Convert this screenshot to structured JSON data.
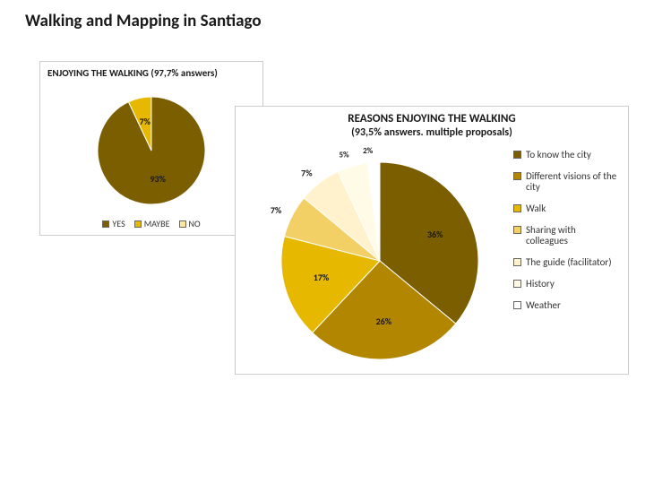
{
  "page": {
    "title": "Walking and Mapping in Santiago"
  },
  "chart1": {
    "type": "pie",
    "title": "ENJOYING THE WALKING (97,7% answers)",
    "background": "#ffffff",
    "border_color": "#cccccc",
    "radius": 60,
    "slices": [
      {
        "label": "YES",
        "value": 93,
        "text": "93%",
        "color": "#7a5e00"
      },
      {
        "label": "MAYBE",
        "value": 7,
        "text": "7%",
        "color": "#e6b800"
      },
      {
        "label": "NO",
        "value": 0,
        "text": "",
        "color": "#ffe699"
      }
    ],
    "legend": [
      {
        "label": "YES",
        "color": "#7a5e00"
      },
      {
        "label": "MAYBE",
        "color": "#e6b800"
      },
      {
        "label": "NO",
        "color": "#ffe699"
      }
    ],
    "label_fontsize": 9,
    "label_color": "#1a1a1a",
    "start_angle_deg": -90
  },
  "chart2": {
    "type": "pie",
    "title": "REASONS ENJOYING THE WALKING",
    "subtitle": "(93,5% answers. multiple proposals)",
    "background": "#ffffff",
    "border_color": "#cccccc",
    "radius": 110,
    "slices": [
      {
        "label": "To know the city",
        "value": 36,
        "text": "36%",
        "color": "#7a5e00"
      },
      {
        "label": "Different visions of the city",
        "value": 26,
        "text": "26%",
        "color": "#b38600"
      },
      {
        "label": "Walk",
        "value": 17,
        "text": "17%",
        "color": "#e6b800"
      },
      {
        "label": "Sharing with colleagues",
        "value": 7,
        "text": "7%",
        "color": "#f2d066"
      },
      {
        "label": "The guide (facilitator)",
        "value": 7,
        "text": "7%",
        "color": "#fff2cc"
      },
      {
        "label": "History",
        "value": 5,
        "text": "5%",
        "color": "#fffbe6"
      },
      {
        "label": "Weather",
        "value": 2,
        "text": "2%",
        "color": "#ffffff"
      }
    ],
    "legend": [
      {
        "label": "To know the city",
        "color": "#7a5e00"
      },
      {
        "label": "Different visions of the city",
        "color": "#b38600"
      },
      {
        "label": "Walk",
        "color": "#e6b800"
      },
      {
        "label": "Sharing with colleagues",
        "color": "#f2d066"
      },
      {
        "label": "The guide (facilitator)",
        "color": "#fff2cc"
      },
      {
        "label": "History",
        "color": "#fffbe6"
      },
      {
        "label": "Weather",
        "color": "#ffffff"
      }
    ],
    "label_fontsize": 10,
    "label_color": "#1a1a1a",
    "start_angle_deg": -90,
    "slice_stroke": "#ffffff",
    "slice_stroke_width": 1
  }
}
